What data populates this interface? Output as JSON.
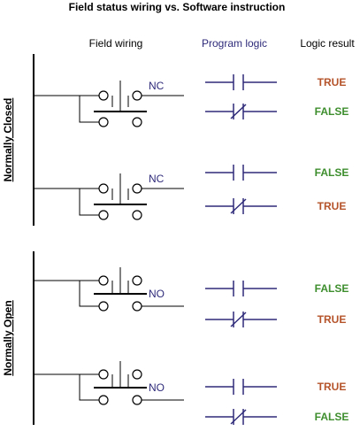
{
  "title": "Field status wiring vs. Software instruction",
  "headers": {
    "field": "Field wiring",
    "program": "Program logic",
    "result": "Logic result"
  },
  "sections": [
    {
      "label": "Normally Closed",
      "rungs": [
        {
          "contact_label": "NC",
          "rows": [
            {
              "instruction": "examine-if-closed",
              "result": "TRUE"
            },
            {
              "instruction": "examine-if-open",
              "result": "FALSE"
            }
          ]
        },
        {
          "contact_label": "NC",
          "rows": [
            {
              "instruction": "examine-if-closed",
              "result": "FALSE"
            },
            {
              "instruction": "examine-if-open",
              "result": "TRUE"
            }
          ]
        }
      ]
    },
    {
      "label": "Normally Open",
      "rungs": [
        {
          "contact_label": "NO",
          "rows": [
            {
              "instruction": "examine-if-closed",
              "result": "FALSE"
            },
            {
              "instruction": "examine-if-open",
              "result": "TRUE"
            }
          ]
        },
        {
          "contact_label": "NO",
          "rows": [
            {
              "instruction": "examine-if-closed",
              "result": "TRUE"
            },
            {
              "instruction": "examine-if-open",
              "result": "FALSE"
            }
          ]
        }
      ]
    }
  ],
  "colors": {
    "text": "#000000",
    "program": "#2e2a7a",
    "true": "#b5532a",
    "false": "#3e8e2e"
  }
}
